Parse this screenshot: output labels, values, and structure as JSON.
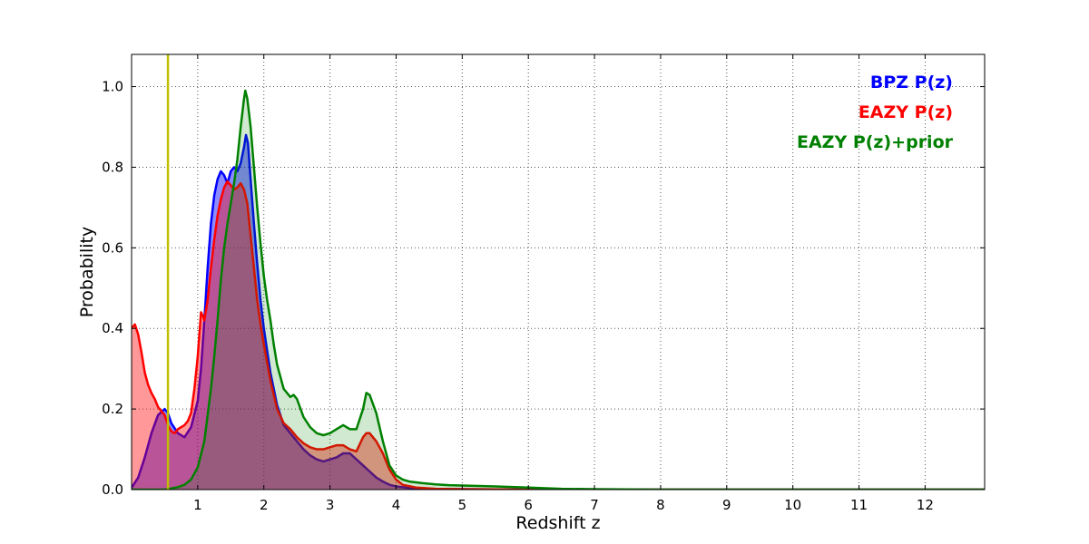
{
  "figure": {
    "background": "#ffffff"
  },
  "legend": {
    "position": "upper right",
    "items": [
      {
        "label": "BPZ P(z)",
        "color": "#0000ff"
      },
      {
        "label": "EAZY P(z)",
        "color": "#ff0000"
      },
      {
        "label": "EAZY P(z)+prior",
        "color": "#008000"
      }
    ]
  },
  "chart_data": {
    "type": "line",
    "title": "",
    "xlabel": "Redshift z",
    "ylabel": "Probability",
    "xlim": [
      0,
      12.9
    ],
    "ylim": [
      0,
      1.08
    ],
    "x_ticks": [
      1,
      2,
      3,
      4,
      5,
      6,
      7,
      8,
      9,
      10,
      11,
      12
    ],
    "y_ticks": [
      0.0,
      0.2,
      0.4,
      0.6,
      0.8,
      1.0
    ],
    "grid": true,
    "grid_style": "dotted",
    "frame_color": "#000000",
    "vline": {
      "x": 0.55,
      "color": "#bfbf00",
      "width": 2.5
    },
    "series": [
      {
        "name": "BPZ P(z)",
        "color": "#0000ff",
        "fill_opacity": 0.45,
        "line_width": 2.5,
        "points": [
          [
            0,
            0.005
          ],
          [
            0.1,
            0.03
          ],
          [
            0.2,
            0.08
          ],
          [
            0.3,
            0.14
          ],
          [
            0.4,
            0.185
          ],
          [
            0.5,
            0.2
          ],
          [
            0.55,
            0.19
          ],
          [
            0.6,
            0.165
          ],
          [
            0.7,
            0.14
          ],
          [
            0.8,
            0.13
          ],
          [
            0.9,
            0.155
          ],
          [
            1.0,
            0.22
          ],
          [
            1.05,
            0.3
          ],
          [
            1.1,
            0.42
          ],
          [
            1.15,
            0.55
          ],
          [
            1.2,
            0.66
          ],
          [
            1.25,
            0.73
          ],
          [
            1.3,
            0.77
          ],
          [
            1.35,
            0.79
          ],
          [
            1.4,
            0.78
          ],
          [
            1.45,
            0.76
          ],
          [
            1.5,
            0.79
          ],
          [
            1.55,
            0.8
          ],
          [
            1.6,
            0.79
          ],
          [
            1.65,
            0.81
          ],
          [
            1.7,
            0.85
          ],
          [
            1.73,
            0.88
          ],
          [
            1.76,
            0.86
          ],
          [
            1.8,
            0.77
          ],
          [
            1.85,
            0.66
          ],
          [
            1.9,
            0.56
          ],
          [
            1.95,
            0.47
          ],
          [
            2.0,
            0.4
          ],
          [
            2.1,
            0.29
          ],
          [
            2.2,
            0.21
          ],
          [
            2.3,
            0.16
          ],
          [
            2.4,
            0.14
          ],
          [
            2.5,
            0.12
          ],
          [
            2.6,
            0.1
          ],
          [
            2.7,
            0.085
          ],
          [
            2.8,
            0.075
          ],
          [
            2.9,
            0.07
          ],
          [
            3.0,
            0.075
          ],
          [
            3.1,
            0.08
          ],
          [
            3.2,
            0.09
          ],
          [
            3.3,
            0.09
          ],
          [
            3.4,
            0.075
          ],
          [
            3.5,
            0.06
          ],
          [
            3.6,
            0.045
          ],
          [
            3.7,
            0.03
          ],
          [
            3.8,
            0.02
          ],
          [
            3.9,
            0.012
          ],
          [
            4.0,
            0.008
          ],
          [
            4.2,
            0.004
          ],
          [
            4.5,
            0.002
          ],
          [
            5.0,
            0.001
          ],
          [
            6.0,
            0
          ],
          [
            12.9,
            0
          ]
        ]
      },
      {
        "name": "EAZY P(z)",
        "color": "#ff0000",
        "fill_opacity": 0.4,
        "line_width": 2.5,
        "points": [
          [
            0,
            0.4
          ],
          [
            0.05,
            0.41
          ],
          [
            0.1,
            0.385
          ],
          [
            0.15,
            0.34
          ],
          [
            0.2,
            0.29
          ],
          [
            0.25,
            0.26
          ],
          [
            0.3,
            0.24
          ],
          [
            0.35,
            0.225
          ],
          [
            0.4,
            0.205
          ],
          [
            0.45,
            0.195
          ],
          [
            0.5,
            0.185
          ],
          [
            0.55,
            0.16
          ],
          [
            0.6,
            0.145
          ],
          [
            0.65,
            0.14
          ],
          [
            0.7,
            0.15
          ],
          [
            0.75,
            0.155
          ],
          [
            0.8,
            0.16
          ],
          [
            0.85,
            0.17
          ],
          [
            0.9,
            0.19
          ],
          [
            0.95,
            0.25
          ],
          [
            1.0,
            0.33
          ],
          [
            1.05,
            0.44
          ],
          [
            1.08,
            0.43
          ],
          [
            1.1,
            0.42
          ],
          [
            1.15,
            0.47
          ],
          [
            1.2,
            0.55
          ],
          [
            1.25,
            0.62
          ],
          [
            1.3,
            0.68
          ],
          [
            1.35,
            0.72
          ],
          [
            1.4,
            0.75
          ],
          [
            1.45,
            0.765
          ],
          [
            1.5,
            0.755
          ],
          [
            1.55,
            0.745
          ],
          [
            1.6,
            0.75
          ],
          [
            1.65,
            0.76
          ],
          [
            1.7,
            0.745
          ],
          [
            1.75,
            0.71
          ],
          [
            1.8,
            0.63
          ],
          [
            1.85,
            0.55
          ],
          [
            1.9,
            0.47
          ],
          [
            1.95,
            0.41
          ],
          [
            2.0,
            0.36
          ],
          [
            2.1,
            0.27
          ],
          [
            2.2,
            0.2
          ],
          [
            2.3,
            0.165
          ],
          [
            2.4,
            0.15
          ],
          [
            2.5,
            0.13
          ],
          [
            2.6,
            0.115
          ],
          [
            2.7,
            0.105
          ],
          [
            2.8,
            0.1
          ],
          [
            2.9,
            0.1
          ],
          [
            3.0,
            0.105
          ],
          [
            3.1,
            0.11
          ],
          [
            3.2,
            0.11
          ],
          [
            3.3,
            0.1
          ],
          [
            3.4,
            0.095
          ],
          [
            3.5,
            0.13
          ],
          [
            3.55,
            0.14
          ],
          [
            3.6,
            0.14
          ],
          [
            3.7,
            0.12
          ],
          [
            3.8,
            0.09
          ],
          [
            3.9,
            0.05
          ],
          [
            4.0,
            0.025
          ],
          [
            4.1,
            0.012
          ],
          [
            4.3,
            0.005
          ],
          [
            4.6,
            0.002
          ],
          [
            5.0,
            0.001
          ],
          [
            6.0,
            0
          ],
          [
            12.9,
            0
          ]
        ]
      },
      {
        "name": "EAZY P(z)+prior",
        "color": "#008000",
        "fill_opacity": 0.18,
        "line_width": 2.5,
        "points": [
          [
            0,
            0
          ],
          [
            0.5,
            0
          ],
          [
            0.6,
            0.003
          ],
          [
            0.7,
            0.006
          ],
          [
            0.8,
            0.012
          ],
          [
            0.9,
            0.025
          ],
          [
            1.0,
            0.055
          ],
          [
            1.1,
            0.12
          ],
          [
            1.2,
            0.25
          ],
          [
            1.25,
            0.33
          ],
          [
            1.3,
            0.42
          ],
          [
            1.35,
            0.52
          ],
          [
            1.4,
            0.6
          ],
          [
            1.45,
            0.66
          ],
          [
            1.5,
            0.71
          ],
          [
            1.55,
            0.76
          ],
          [
            1.6,
            0.82
          ],
          [
            1.65,
            0.9
          ],
          [
            1.7,
            0.97
          ],
          [
            1.72,
            0.99
          ],
          [
            1.75,
            0.97
          ],
          [
            1.8,
            0.9
          ],
          [
            1.85,
            0.8
          ],
          [
            1.9,
            0.7
          ],
          [
            1.95,
            0.61
          ],
          [
            2.0,
            0.53
          ],
          [
            2.05,
            0.47
          ],
          [
            2.1,
            0.42
          ],
          [
            2.15,
            0.36
          ],
          [
            2.2,
            0.31
          ],
          [
            2.3,
            0.25
          ],
          [
            2.4,
            0.23
          ],
          [
            2.45,
            0.235
          ],
          [
            2.5,
            0.225
          ],
          [
            2.6,
            0.18
          ],
          [
            2.7,
            0.155
          ],
          [
            2.8,
            0.14
          ],
          [
            2.9,
            0.135
          ],
          [
            3.0,
            0.14
          ],
          [
            3.1,
            0.15
          ],
          [
            3.2,
            0.16
          ],
          [
            3.3,
            0.15
          ],
          [
            3.4,
            0.15
          ],
          [
            3.5,
            0.2
          ],
          [
            3.55,
            0.24
          ],
          [
            3.6,
            0.235
          ],
          [
            3.7,
            0.19
          ],
          [
            3.8,
            0.12
          ],
          [
            3.9,
            0.06
          ],
          [
            4.0,
            0.035
          ],
          [
            4.1,
            0.025
          ],
          [
            4.2,
            0.02
          ],
          [
            4.4,
            0.016
          ],
          [
            4.6,
            0.013
          ],
          [
            4.8,
            0.011
          ],
          [
            5.0,
            0.01
          ],
          [
            5.5,
            0.008
          ],
          [
            6.0,
            0.005
          ],
          [
            6.5,
            0.002
          ],
          [
            7.0,
            0.001
          ],
          [
            8.0,
            0
          ],
          [
            12.9,
            0
          ]
        ]
      }
    ]
  }
}
